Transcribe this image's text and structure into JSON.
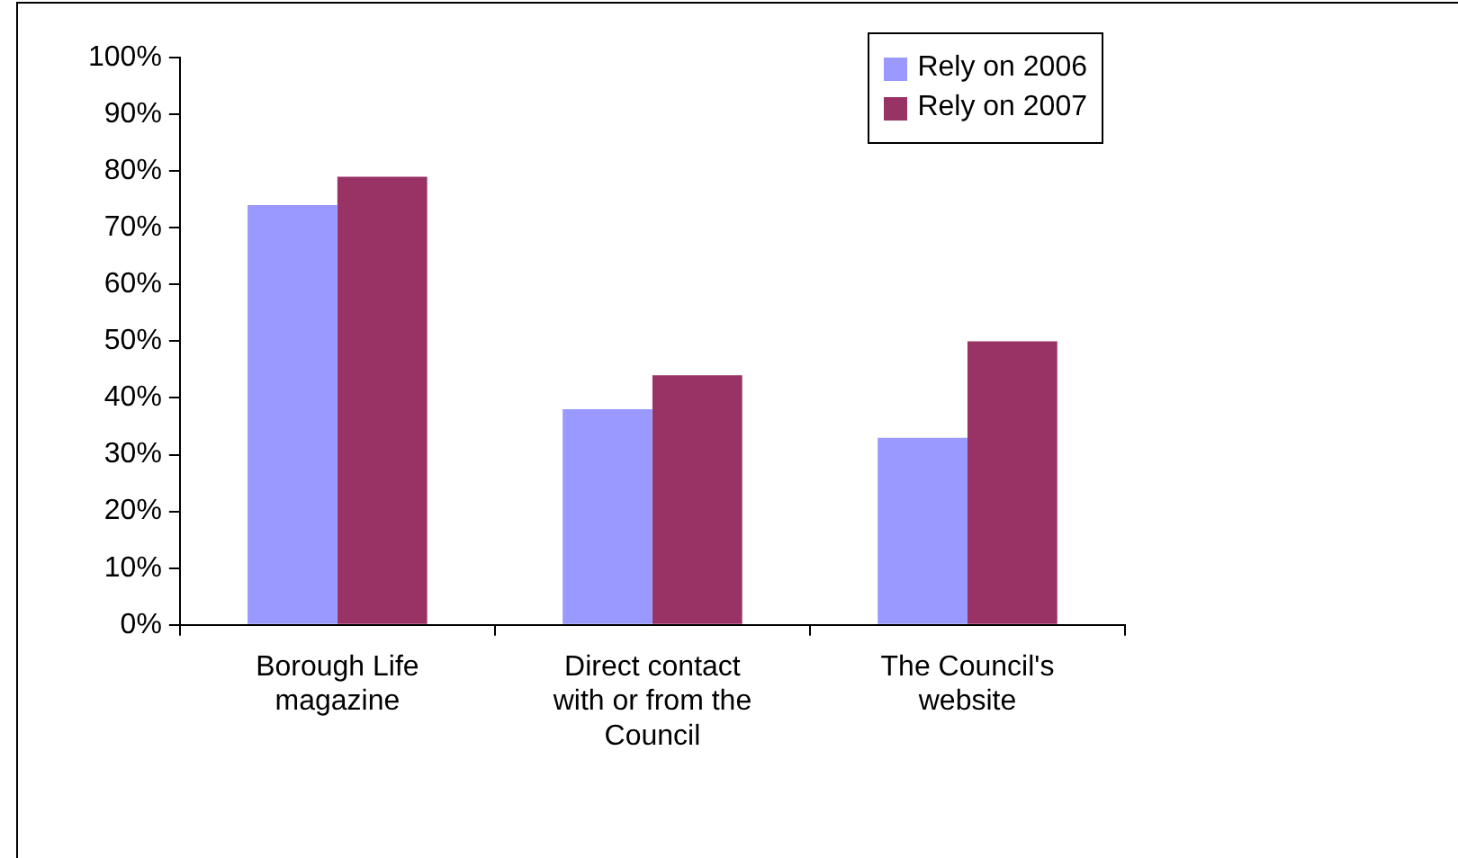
{
  "chart_data": {
    "type": "bar",
    "categories": [
      "Borough Life magazine",
      "Direct contact with or from the Council",
      "The Council's website"
    ],
    "series": [
      {
        "name": "Rely on 2006",
        "color": "#9999ff",
        "values": [
          74,
          38,
          33
        ]
      },
      {
        "name": "Rely on 2007",
        "color": "#993366",
        "values": [
          79,
          44,
          50
        ]
      }
    ],
    "ylim": [
      0,
      100
    ],
    "yticks": [
      {
        "value": 0,
        "label": "0%"
      },
      {
        "value": 10,
        "label": "10%"
      },
      {
        "value": 20,
        "label": "20%"
      },
      {
        "value": 30,
        "label": "30%"
      },
      {
        "value": 40,
        "label": "40%"
      },
      {
        "value": 50,
        "label": "50%"
      },
      {
        "value": 60,
        "label": "60%"
      },
      {
        "value": 70,
        "label": "70%"
      },
      {
        "value": 80,
        "label": "80%"
      },
      {
        "value": 90,
        "label": "90%"
      },
      {
        "value": 100,
        "label": "100%"
      }
    ],
    "grid": false,
    "legend": "top right"
  }
}
